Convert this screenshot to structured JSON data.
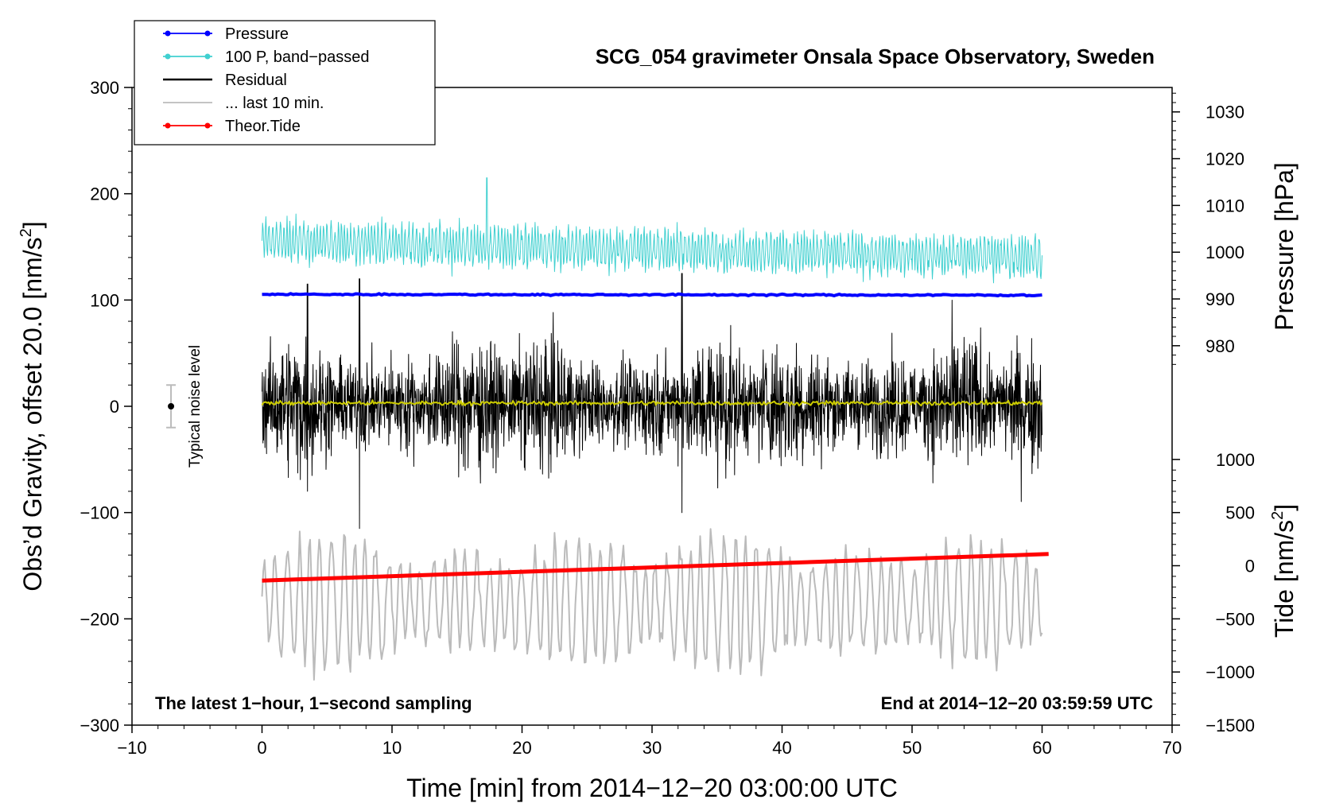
{
  "chart_data": {
    "type": "line",
    "title": "SCG_054 gravimeter Onsala Space Observatory, Sweden",
    "xlabel": "Time [min] from 2014−12−20 03:00:00 UTC",
    "ylabel": "Obs’d Gravity, offset 20.0 [nm/s²]",
    "ylabel_pressure": "Pressure [hPa]",
    "ylabel_tide": "Tide [nm/s²]",
    "xlim": [
      -10,
      70
    ],
    "ylim": [
      -300,
      300
    ],
    "x_ticks": [
      -10,
      0,
      10,
      20,
      30,
      40,
      50,
      60,
      70
    ],
    "x_tick_labels": [
      "−10",
      "0",
      "10",
      "20",
      "30",
      "40",
      "50",
      "60",
      "70"
    ],
    "y_ticks": [
      -300,
      -200,
      -100,
      0,
      100,
      200,
      300
    ],
    "y_tick_labels": [
      "−300",
      "−200",
      "−100",
      "0",
      "100",
      "200",
      "300"
    ],
    "pressure_axis": {
      "ticks": [
        980,
        990,
        1000,
        1010,
        1020,
        1030
      ],
      "tick_labels": [
        "980",
        "990",
        "1000",
        "1010",
        "1020",
        "1030"
      ],
      "mapping": {
        "value_a": 990,
        "gravity_a": 101,
        "value_b": 1030,
        "gravity_b": 277
      }
    },
    "tide_axis": {
      "ticks": [
        -1500,
        -1000,
        -500,
        0,
        500,
        1000
      ],
      "tick_labels": [
        "−1500",
        "−1000",
        "−500",
        "0",
        "500",
        "1000"
      ],
      "mapping": {
        "value_a": -1500,
        "gravity_a": -300,
        "value_b": 1000,
        "gravity_b": -50
      }
    },
    "legend": [
      {
        "label": "Pressure",
        "color": "#0000ff",
        "marker": true
      },
      {
        "label": "100 P, band−passed",
        "color": "#40d0d0",
        "marker": true
      },
      {
        "label": "Residual",
        "color": "#000000",
        "marker": false
      },
      {
        "label": "... last 10 min.",
        "color": "#bbbbbb",
        "marker": false
      },
      {
        "label": "Theor.Tide",
        "color": "#ff0000",
        "marker": true
      }
    ],
    "series": [
      {
        "name": "Pressure",
        "axis": "pressure",
        "color": "#0000ff",
        "x": [
          0,
          60
        ],
        "values": [
          991.0,
          990.8
        ]
      },
      {
        "name": "100 P, band−passed",
        "axis": "gravity",
        "color": "#40d0d0",
        "x_range": [
          0,
          60
        ],
        "center": 155,
        "amplitude": 20
      },
      {
        "name": "Residual",
        "axis": "gravity",
        "color": "#000000",
        "x_range": [
          0,
          60
        ],
        "center": 2,
        "amplitude": 40
      },
      {
        "name": "Residual smoothed",
        "axis": "gravity",
        "color": "#cccc00",
        "x_range": [
          0,
          60
        ],
        "center": 3,
        "amplitude": 2
      },
      {
        "name": "... last 10 min.",
        "axis": "tide",
        "color": "#bbbbbb",
        "x_range": [
          0,
          60
        ],
        "center": -350,
        "amplitude": 550
      },
      {
        "name": "Theor.Tide",
        "axis": "tide",
        "color": "#ff0000",
        "x": [
          0,
          60.5
        ],
        "values": [
          -140,
          110
        ]
      }
    ],
    "noise_bar": {
      "label": "Typical noise level",
      "x": -7,
      "center": 0,
      "half_range": 20
    },
    "annotations": {
      "left": "The latest 1−hour, 1−second sampling",
      "right": "End at 2014−12−20 03:59:59 UTC"
    }
  }
}
